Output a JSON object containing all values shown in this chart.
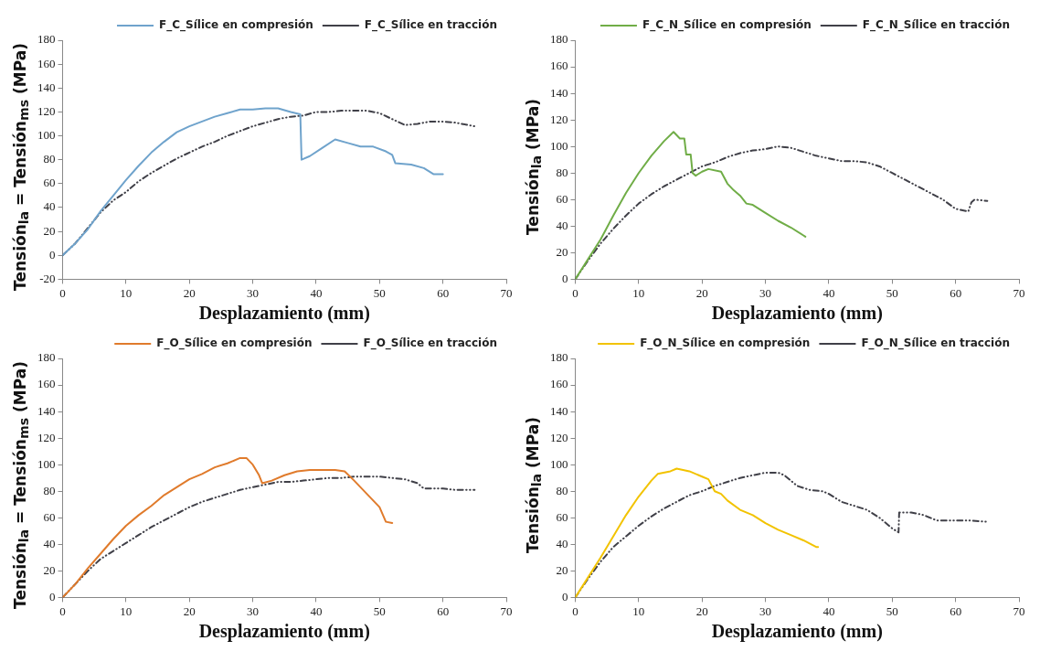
{
  "chart_data": [
    {
      "type": "line",
      "xlabel": "Desplazamiento (mm)",
      "ylabel": "Tensión$_{la}$ = Tensión$_{ms}$ (MPa)",
      "xlim": [
        0,
        70
      ],
      "xticks": [
        0,
        10,
        20,
        30,
        40,
        50,
        60,
        70
      ],
      "ylim": [
        -20,
        180
      ],
      "yticks": [
        -20,
        0,
        20,
        40,
        60,
        80,
        100,
        120,
        140,
        160,
        180
      ],
      "grid": false,
      "legend": "top right",
      "marker": "none",
      "series": [
        {
          "name": "F_C_Sílice en compresión",
          "color": "#6fa3cc",
          "line_style": "solid",
          "x": [
            0,
            2,
            4,
            6,
            8,
            10,
            12,
            14,
            16,
            18,
            20,
            22,
            24,
            26,
            28,
            30,
            32,
            34,
            36,
            37.5,
            37.7,
            39,
            41,
            43,
            45,
            47,
            49,
            51,
            52,
            52.5,
            55,
            57,
            58.5,
            60
          ],
          "values": [
            0,
            10,
            22,
            37,
            50,
            63,
            75,
            86,
            95,
            103,
            108,
            112,
            116,
            119,
            122,
            122,
            123,
            123,
            120,
            118,
            80,
            83,
            90,
            97,
            94,
            91,
            91,
            87,
            84,
            77,
            76,
            73,
            68,
            68
          ]
        },
        {
          "name": "F_C_Sílice en tracción",
          "color": "#404048",
          "line_style": "dashed",
          "x": [
            0,
            2,
            4,
            6,
            8,
            10,
            12,
            14,
            16,
            18,
            20,
            22,
            24,
            26,
            28,
            30,
            32,
            34,
            36,
            38,
            40,
            42,
            44,
            46,
            48,
            50,
            52,
            54,
            56,
            58,
            60,
            62,
            65
          ],
          "values": [
            0,
            10,
            23,
            36,
            46,
            53,
            62,
            69,
            75,
            81,
            86,
            91,
            95,
            100,
            104,
            108,
            111,
            114,
            116,
            117,
            120,
            120,
            121,
            121,
            121,
            119,
            114,
            109,
            110,
            112,
            112,
            111,
            108
          ]
        }
      ]
    },
    {
      "type": "line",
      "xlabel": "Desplazamiento (mm)",
      "ylabel": "Tensión$_{la}$ (MPa)",
      "xlim": [
        0,
        70
      ],
      "xticks": [
        0,
        10,
        20,
        30,
        40,
        50,
        60,
        70
      ],
      "ylim": [
        0,
        180
      ],
      "yticks": [
        0,
        20,
        40,
        60,
        80,
        100,
        120,
        140,
        160,
        180
      ],
      "grid": false,
      "legend": "top right",
      "marker": "none",
      "series": [
        {
          "name": "F_C_N_Sílice en compresión",
          "color": "#70ad47",
          "line_style": "solid",
          "x": [
            0,
            2,
            4,
            6,
            8,
            10,
            12,
            14,
            15.5,
            16.5,
            17.2,
            17.5,
            18.2,
            18.5,
            19,
            20,
            21,
            23,
            24,
            25,
            26,
            27,
            28,
            30,
            32,
            34,
            36,
            36.3
          ],
          "values": [
            0,
            15,
            30,
            48,
            65,
            80,
            93,
            104,
            111,
            106,
            106,
            94,
            94,
            80,
            78,
            81,
            83,
            81,
            72,
            67,
            63,
            57,
            56,
            50,
            44,
            39,
            33,
            32
          ]
        },
        {
          "name": "F_C_N_Sílice en tracción",
          "color": "#404048",
          "line_style": "dashed",
          "x": [
            0,
            2,
            4,
            6,
            8,
            10,
            12,
            14,
            16,
            18,
            20,
            22,
            24,
            26,
            28,
            30,
            32,
            34,
            36,
            38,
            40,
            42,
            44,
            46,
            48,
            50,
            52,
            54,
            56,
            58,
            60,
            62,
            62.5,
            63,
            65
          ],
          "values": [
            0,
            14,
            27,
            38,
            48,
            57,
            64,
            70,
            75,
            80,
            85,
            88,
            92,
            95,
            97,
            98,
            100,
            99,
            96,
            93,
            91,
            89,
            89,
            88,
            85,
            80,
            75,
            70,
            65,
            60,
            53,
            51,
            58,
            60,
            59
          ]
        }
      ]
    },
    {
      "type": "line",
      "xlabel": "Desplazamiento (mm)",
      "ylabel": "Tensión$_{la}$ = Tensión$_{ms}$ (MPa)",
      "xlim": [
        0,
        70
      ],
      "xticks": [
        0,
        10,
        20,
        30,
        40,
        50,
        60,
        70
      ],
      "ylim": [
        0,
        180
      ],
      "yticks": [
        0,
        20,
        40,
        60,
        80,
        100,
        120,
        140,
        160,
        180
      ],
      "grid": false,
      "legend": "top right",
      "marker": "none",
      "series": [
        {
          "name": "F_O_Sílice en compresión",
          "color": "#e07b2c",
          "line_style": "solid",
          "x": [
            0,
            2,
            4,
            6,
            8,
            10,
            12,
            14,
            16,
            18,
            20,
            22,
            24,
            26,
            28,
            29,
            30,
            31,
            31.5,
            33,
            35,
            37,
            39,
            41,
            43,
            44.5,
            46,
            48,
            50,
            51,
            52
          ],
          "values": [
            0,
            10,
            22,
            33,
            44,
            54,
            62,
            69,
            77,
            83,
            89,
            93,
            98,
            101,
            105,
            105,
            100,
            92,
            86,
            88,
            92,
            95,
            96,
            96,
            96,
            95,
            88,
            78,
            68,
            57,
            56
          ]
        },
        {
          "name": "F_O_Sílice en tracción",
          "color": "#404048",
          "line_style": "dashed",
          "x": [
            0,
            2,
            4,
            6,
            8,
            10,
            12,
            14,
            16,
            18,
            20,
            22,
            24,
            26,
            28,
            30,
            32,
            34,
            36,
            38,
            40,
            42,
            44,
            46,
            48,
            50,
            52,
            54,
            56,
            57,
            60,
            62,
            65
          ],
          "values": [
            0,
            10,
            20,
            29,
            35,
            41,
            47,
            53,
            58,
            63,
            68,
            72,
            75,
            78,
            81,
            83,
            85,
            87,
            87,
            88,
            89,
            90,
            90,
            91,
            91,
            91,
            90,
            89,
            86,
            82,
            82,
            81,
            81
          ]
        }
      ]
    },
    {
      "type": "line",
      "xlabel": "Desplazamiento (mm)",
      "ylabel": "Tensión$_{la}$ (MPa)",
      "xlim": [
        0,
        70
      ],
      "xticks": [
        0,
        10,
        20,
        30,
        40,
        50,
        60,
        70
      ],
      "ylim": [
        0,
        180
      ],
      "yticks": [
        0,
        20,
        40,
        60,
        80,
        100,
        120,
        140,
        160,
        180
      ],
      "grid": false,
      "legend": "top right",
      "marker": "none",
      "series": [
        {
          "name": "F_O_N_Sílice en compresión",
          "color": "#f2c300",
          "line_style": "solid",
          "x": [
            0,
            2,
            4,
            6,
            8,
            10,
            12,
            13,
            15,
            16,
            18,
            20,
            21,
            22,
            23,
            24,
            26,
            28,
            30,
            32,
            34,
            36,
            38,
            38.3
          ],
          "values": [
            0,
            15,
            30,
            46,
            62,
            76,
            88,
            93,
            95,
            97,
            95,
            91,
            89,
            80,
            78,
            73,
            66,
            62,
            56,
            51,
            47,
            43,
            38,
            38
          ]
        },
        {
          "name": "F_O_N_Sílice en tracción",
          "color": "#404048",
          "line_style": "dashed",
          "x": [
            0,
            2,
            4,
            6,
            8,
            10,
            12,
            14,
            16,
            18,
            20,
            22,
            24,
            26,
            28,
            30,
            32,
            33,
            35,
            37,
            39,
            40,
            42,
            44,
            46,
            48,
            50,
            51,
            51.1,
            53,
            55,
            57,
            60,
            62,
            65
          ],
          "values": [
            0,
            14,
            27,
            38,
            46,
            54,
            61,
            67,
            72,
            77,
            80,
            84,
            87,
            90,
            92,
            94,
            94,
            92,
            84,
            81,
            80,
            78,
            72,
            69,
            66,
            60,
            52,
            49,
            64,
            64,
            62,
            58,
            58,
            58,
            57
          ]
        }
      ]
    }
  ]
}
